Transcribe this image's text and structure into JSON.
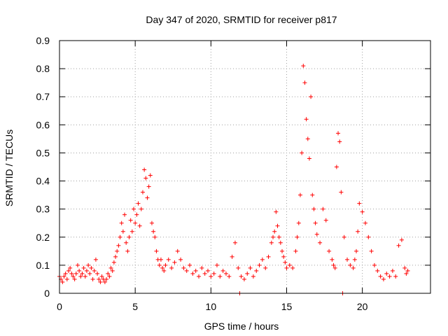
{
  "chart_data": {
    "type": "scatter",
    "title": "Day 347 of 2020, SRMTID for receiver p817",
    "xlabel": "GPS time / hours",
    "ylabel": "SRMTID / TECUs",
    "xlim": [
      0,
      24.5
    ],
    "ylim": [
      0,
      0.9
    ],
    "grid": true,
    "marker": "+",
    "color": "#ff0000",
    "xticks": [
      0,
      5,
      10,
      15,
      20
    ],
    "xtick_labels": [
      "0",
      "5",
      "10",
      "15",
      "20"
    ],
    "yticks": [
      0,
      0.1,
      0.2,
      0.3,
      0.4,
      0.5,
      0.6,
      0.7,
      0.8,
      0.9
    ],
    "ytick_labels": [
      "0",
      "0.1",
      "0.2",
      "0.3",
      "0.4",
      "0.5",
      "0.6",
      "0.7",
      "0.8",
      "0.9"
    ],
    "series": [
      {
        "name": "SRMTID",
        "x": [
          0.0,
          0.1,
          0.2,
          0.3,
          0.4,
          0.5,
          0.6,
          0.7,
          0.8,
          0.9,
          1.0,
          1.1,
          1.2,
          1.3,
          1.4,
          1.5,
          1.6,
          1.7,
          1.8,
          1.9,
          2.0,
          2.1,
          2.2,
          2.3,
          2.4,
          2.5,
          2.6,
          2.7,
          2.8,
          2.9,
          3.0,
          3.1,
          3.2,
          3.3,
          3.4,
          3.5,
          3.6,
          3.7,
          3.8,
          3.9,
          4.0,
          4.1,
          4.2,
          4.3,
          4.4,
          4.5,
          4.6,
          4.7,
          4.8,
          4.9,
          5.0,
          5.1,
          5.2,
          5.3,
          5.4,
          5.5,
          5.6,
          5.7,
          5.8,
          5.9,
          6.0,
          6.1,
          6.2,
          6.3,
          6.4,
          6.5,
          6.6,
          6.7,
          6.8,
          6.9,
          7.0,
          7.2,
          7.4,
          7.6,
          7.8,
          8.0,
          8.2,
          8.4,
          8.6,
          8.8,
          9.0,
          9.2,
          9.4,
          9.6,
          9.8,
          10.0,
          10.2,
          10.4,
          10.6,
          10.8,
          11.0,
          11.2,
          11.4,
          11.6,
          11.8,
          12.0,
          12.2,
          12.4,
          12.6,
          12.8,
          13.0,
          13.2,
          13.4,
          13.6,
          13.8,
          14.0,
          14.1,
          14.2,
          14.3,
          14.4,
          14.5,
          14.6,
          14.7,
          14.8,
          14.9,
          15.0,
          15.2,
          15.4,
          15.6,
          15.7,
          15.8,
          15.9,
          16.0,
          16.1,
          16.2,
          16.3,
          16.4,
          16.5,
          16.6,
          16.7,
          16.8,
          16.9,
          17.0,
          17.2,
          17.4,
          17.6,
          17.8,
          18.0,
          18.1,
          18.2,
          18.3,
          18.4,
          18.5,
          18.6,
          18.8,
          19.0,
          19.2,
          19.4,
          19.5,
          19.6,
          19.7,
          19.8,
          20.0,
          20.2,
          20.4,
          20.6,
          20.8,
          21.0,
          21.2,
          21.4,
          21.6,
          21.8,
          22.0,
          22.2,
          22.4,
          22.6,
          22.8,
          22.9,
          23.0,
          11.9,
          18.7
        ],
        "y": [
          0.06,
          0.05,
          0.04,
          0.06,
          0.07,
          0.05,
          0.08,
          0.09,
          0.07,
          0.06,
          0.05,
          0.07,
          0.1,
          0.08,
          0.06,
          0.07,
          0.09,
          0.06,
          0.08,
          0.1,
          0.07,
          0.09,
          0.05,
          0.08,
          0.12,
          0.07,
          0.05,
          0.04,
          0.06,
          0.05,
          0.04,
          0.05,
          0.07,
          0.06,
          0.09,
          0.08,
          0.11,
          0.13,
          0.15,
          0.17,
          0.2,
          0.25,
          0.22,
          0.28,
          0.18,
          0.15,
          0.2,
          0.26,
          0.22,
          0.3,
          0.25,
          0.28,
          0.32,
          0.24,
          0.3,
          0.36,
          0.44,
          0.41,
          0.34,
          0.38,
          0.42,
          0.25,
          0.22,
          0.2,
          0.15,
          0.12,
          0.1,
          0.12,
          0.09,
          0.08,
          0.1,
          0.12,
          0.09,
          0.11,
          0.15,
          0.12,
          0.09,
          0.08,
          0.1,
          0.07,
          0.08,
          0.06,
          0.09,
          0.07,
          0.08,
          0.06,
          0.07,
          0.1,
          0.06,
          0.08,
          0.07,
          0.06,
          0.13,
          0.18,
          0.09,
          0.06,
          0.05,
          0.07,
          0.09,
          0.06,
          0.08,
          0.1,
          0.12,
          0.09,
          0.13,
          0.18,
          0.2,
          0.22,
          0.29,
          0.24,
          0.2,
          0.18,
          0.15,
          0.13,
          0.11,
          0.09,
          0.1,
          0.09,
          0.15,
          0.2,
          0.25,
          0.35,
          0.5,
          0.81,
          0.75,
          0.62,
          0.55,
          0.48,
          0.7,
          0.35,
          0.3,
          0.25,
          0.21,
          0.18,
          0.3,
          0.26,
          0.15,
          0.12,
          0.1,
          0.09,
          0.45,
          0.57,
          0.54,
          0.36,
          0.2,
          0.12,
          0.1,
          0.09,
          0.12,
          0.15,
          0.22,
          0.32,
          0.29,
          0.25,
          0.2,
          0.15,
          0.1,
          0.08,
          0.06,
          0.05,
          0.07,
          0.06,
          0.08,
          0.06,
          0.17,
          0.19,
          0.09,
          0.07,
          0.08,
          0.0,
          0.0
        ]
      }
    ]
  }
}
